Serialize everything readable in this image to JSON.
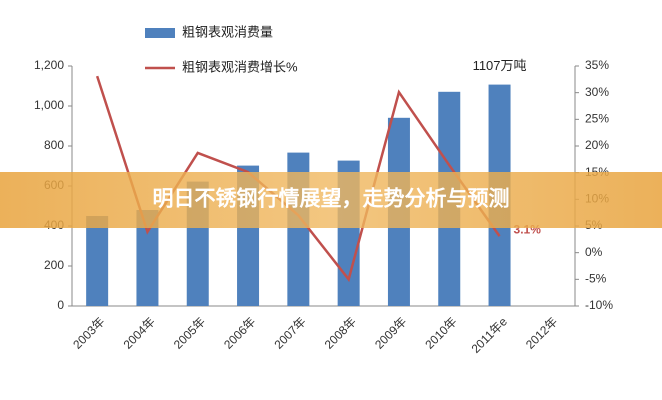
{
  "chart_data": {
    "type": "bar_line",
    "overlay_title": "明日不锈钢行情展望，走势分析与预测",
    "categories": [
      "2003年",
      "2004年",
      "2005年",
      "2006年",
      "2007年",
      "2008年",
      "2009年",
      "2010年",
      "2011年e",
      "2012年"
    ],
    "series": [
      {
        "name": "粗钢表观消费量",
        "color": "#4f81bd",
        "type": "bar",
        "values": [
          450,
          480,
          622,
          702,
          767,
          727,
          941,
          1071,
          1107,
          null
        ],
        "value_labels": [
          null,
          null,
          null,
          null,
          null,
          null,
          null,
          null,
          "1107万吨",
          null
        ]
      },
      {
        "name": "粗钢表观消费增长%",
        "color": "#c0504d",
        "type": "line",
        "axis": "y2",
        "values": [
          33.1,
          3.9,
          18.7,
          15.1,
          7,
          -5,
          30.1,
          16.4,
          3.1,
          null
        ],
        "value_labels": [
          null,
          null,
          null,
          null,
          null,
          null,
          null,
          null,
          "3.1%",
          null
        ]
      }
    ],
    "ylim": [
      0,
      1200
    ],
    "yticks": [
      0,
      200,
      400,
      600,
      800,
      {
        "value": 1000,
        "label": "1,000"
      },
      {
        "value": 1200,
        "label": "1,200"
      }
    ],
    "y2lim": [
      -10,
      35
    ],
    "y2ticks": [
      {
        "value": -10,
        "label": "-10%"
      },
      {
        "value": -5,
        "label": "-5%"
      },
      {
        "value": 0,
        "label": "0%"
      },
      {
        "value": 5,
        "label": "5%"
      },
      {
        "value": 10,
        "label": "10%"
      },
      {
        "value": 15,
        "label": "15%"
      },
      {
        "value": 20,
        "label": "20%"
      },
      {
        "value": 25,
        "label": "25%"
      },
      {
        "value": 30,
        "label": "30%"
      },
      {
        "value": 35,
        "label": "35%"
      }
    ]
  }
}
